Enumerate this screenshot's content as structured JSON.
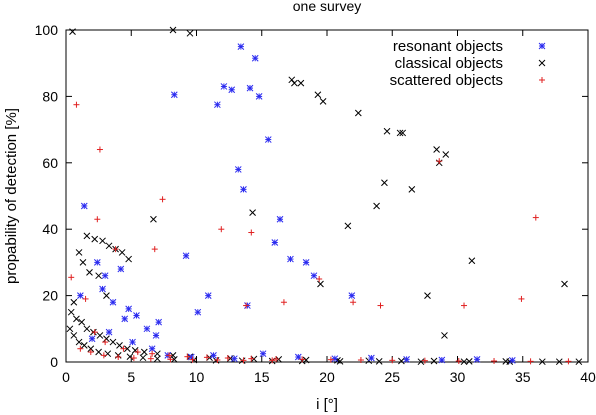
{
  "chart_data": {
    "type": "scatter",
    "title": "one survey",
    "xlabel": "i [°]",
    "ylabel": "propability of detection [%]",
    "xlim": [
      0,
      40
    ],
    "ylim": [
      0,
      100
    ],
    "xticks": [
      0,
      5,
      10,
      15,
      20,
      25,
      30,
      35,
      40
    ],
    "yticks": [
      0,
      20,
      40,
      60,
      80,
      100
    ],
    "legend_position": "top-right",
    "series": [
      {
        "name": "resonant objects",
        "marker": "asterisk",
        "color": "#2a2af0",
        "points": [
          [
            1.4,
            47
          ],
          [
            2.4,
            30
          ],
          [
            3.0,
            26
          ],
          [
            3.6,
            18
          ],
          [
            4.2,
            28
          ],
          [
            4.8,
            16
          ],
          [
            5.4,
            14
          ],
          [
            6.2,
            10
          ],
          [
            7.1,
            12
          ],
          [
            8.3,
            80.5
          ],
          [
            9.2,
            32
          ],
          [
            10.1,
            15
          ],
          [
            10.9,
            20
          ],
          [
            11.6,
            77.5
          ],
          [
            12.1,
            83
          ],
          [
            12.7,
            82
          ],
          [
            13.2,
            58
          ],
          [
            13.4,
            95
          ],
          [
            13.6,
            52
          ],
          [
            13.9,
            17
          ],
          [
            14.1,
            82.5
          ],
          [
            14.5,
            91.5
          ],
          [
            14.8,
            80
          ],
          [
            15.5,
            67
          ],
          [
            16.0,
            36
          ],
          [
            16.4,
            43
          ],
          [
            17.2,
            31
          ],
          [
            18.4,
            30
          ],
          [
            19.0,
            26
          ],
          [
            21.9,
            20
          ],
          [
            2.0,
            7
          ],
          [
            3.3,
            9
          ],
          [
            5.1,
            6
          ],
          [
            6.6,
            4
          ],
          [
            7.8,
            2
          ],
          [
            9.6,
            1.5
          ],
          [
            11.3,
            2
          ],
          [
            12.9,
            1
          ],
          [
            15.1,
            2.5
          ],
          [
            17.8,
            1.5
          ],
          [
            20.6,
            1
          ],
          [
            23.4,
            1.2
          ],
          [
            26.1,
            0.8
          ],
          [
            28.8,
            0.6
          ],
          [
            31.5,
            0.8
          ],
          [
            34.2,
            0.5
          ],
          [
            1.1,
            20
          ],
          [
            2.8,
            22
          ],
          [
            4.5,
            13
          ],
          [
            6.9,
            8
          ]
        ]
      },
      {
        "name": "classical objects",
        "marker": "cross",
        "color": "#000000",
        "points": [
          [
            0.5,
            99.5
          ],
          [
            8.2,
            100
          ],
          [
            9.5,
            99
          ],
          [
            14.3,
            45
          ],
          [
            17.3,
            85
          ],
          [
            17.5,
            84
          ],
          [
            18.0,
            84
          ],
          [
            19.3,
            80.5
          ],
          [
            19.7,
            78.5
          ],
          [
            21.6,
            41
          ],
          [
            22.4,
            75
          ],
          [
            23.8,
            47
          ],
          [
            24.4,
            54
          ],
          [
            24.6,
            69.5
          ],
          [
            25.6,
            69
          ],
          [
            25.8,
            69
          ],
          [
            26.5,
            52
          ],
          [
            28.4,
            64
          ],
          [
            28.6,
            60
          ],
          [
            29.1,
            62.5
          ],
          [
            29.0,
            8
          ],
          [
            31.1,
            30.5
          ],
          [
            38.2,
            23.5
          ],
          [
            27.7,
            20
          ],
          [
            19.5,
            23.5
          ],
          [
            6.7,
            43
          ],
          [
            1.6,
            38
          ],
          [
            2.2,
            37
          ],
          [
            2.8,
            36.5
          ],
          [
            3.3,
            35
          ],
          [
            3.8,
            34
          ],
          [
            4.3,
            33
          ],
          [
            4.8,
            31
          ],
          [
            1.0,
            33
          ],
          [
            1.3,
            30
          ],
          [
            1.8,
            27
          ],
          [
            2.5,
            26
          ],
          [
            3.1,
            20
          ],
          [
            0.6,
            18
          ],
          [
            0.4,
            15
          ],
          [
            0.8,
            13
          ],
          [
            1.2,
            12
          ],
          [
            1.6,
            10
          ],
          [
            2.1,
            9
          ],
          [
            2.6,
            8
          ],
          [
            3.1,
            7
          ],
          [
            3.6,
            6
          ],
          [
            4.1,
            5
          ],
          [
            4.7,
            4
          ],
          [
            5.3,
            3.5
          ],
          [
            6.0,
            3
          ],
          [
            7.0,
            2.5
          ],
          [
            8.2,
            2
          ],
          [
            9.5,
            1.6
          ],
          [
            11.0,
            1.3
          ],
          [
            12.6,
            1.1
          ],
          [
            14.4,
            0.9
          ],
          [
            16.3,
            0.8
          ],
          [
            18.4,
            0.6
          ],
          [
            20.8,
            0.5
          ],
          [
            23.2,
            0.4
          ],
          [
            25.7,
            0.3
          ],
          [
            28.2,
            0.3
          ],
          [
            30.9,
            0.2
          ],
          [
            33.7,
            0.2
          ],
          [
            36.5,
            0.1
          ],
          [
            39.3,
            0.1
          ],
          [
            0.3,
            10
          ],
          [
            0.6,
            8
          ],
          [
            1.0,
            6
          ],
          [
            1.4,
            5
          ],
          [
            1.9,
            4
          ],
          [
            2.5,
            3
          ],
          [
            3.2,
            2.5
          ],
          [
            4.0,
            2
          ],
          [
            4.9,
            1.6
          ],
          [
            5.9,
            1.3
          ],
          [
            7.0,
            1.0
          ],
          [
            8.3,
            0.8
          ],
          [
            9.8,
            0.6
          ],
          [
            11.5,
            0.5
          ],
          [
            13.5,
            0.4
          ],
          [
            15.8,
            0.3
          ],
          [
            18.1,
            0.3
          ],
          [
            21.0,
            0.2
          ],
          [
            24.0,
            0.2
          ],
          [
            27.2,
            0.1
          ],
          [
            30.5,
            0.1
          ],
          [
            34.0,
            0.1
          ],
          [
            37.8,
            0.1
          ]
        ]
      },
      {
        "name": "scattered objects",
        "marker": "plus",
        "color": "#e02020",
        "points": [
          [
            0.8,
            77.5
          ],
          [
            2.6,
            64
          ],
          [
            2.4,
            43
          ],
          [
            3.8,
            34
          ],
          [
            6.8,
            34
          ],
          [
            7.4,
            49
          ],
          [
            11.9,
            40
          ],
          [
            14.2,
            39
          ],
          [
            13.8,
            17
          ],
          [
            16.7,
            18
          ],
          [
            19.4,
            25
          ],
          [
            22.0,
            18
          ],
          [
            24.1,
            17
          ],
          [
            28.6,
            60.5
          ],
          [
            30.5,
            17
          ],
          [
            34.9,
            19
          ],
          [
            36.0,
            43.5
          ],
          [
            0.4,
            25.5
          ],
          [
            1.5,
            19
          ],
          [
            2.2,
            9
          ],
          [
            3.0,
            6
          ],
          [
            4.4,
            4
          ],
          [
            5.5,
            3
          ],
          [
            6.6,
            2.5
          ],
          [
            7.9,
            2
          ],
          [
            9.3,
            1.6
          ],
          [
            10.8,
            1.4
          ],
          [
            12.4,
            1.2
          ],
          [
            14.2,
            1.0
          ],
          [
            16.1,
            0.9
          ],
          [
            18.1,
            0.8
          ],
          [
            20.3,
            0.7
          ],
          [
            22.6,
            0.6
          ],
          [
            25.0,
            0.5
          ],
          [
            27.5,
            0.4
          ],
          [
            30.1,
            0.3
          ],
          [
            32.8,
            0.3
          ],
          [
            35.6,
            0.2
          ],
          [
            38.5,
            0.2
          ],
          [
            1.1,
            4
          ],
          [
            1.9,
            3
          ],
          [
            2.9,
            2
          ],
          [
            4.0,
            1.5
          ],
          [
            5.2,
            1.2
          ],
          [
            6.5,
            1.0
          ],
          [
            8.0,
            0.8
          ],
          [
            9.7,
            0.7
          ],
          [
            11.6,
            0.6
          ],
          [
            13.6,
            0.5
          ],
          [
            15.8,
            0.5
          ]
        ]
      }
    ]
  }
}
